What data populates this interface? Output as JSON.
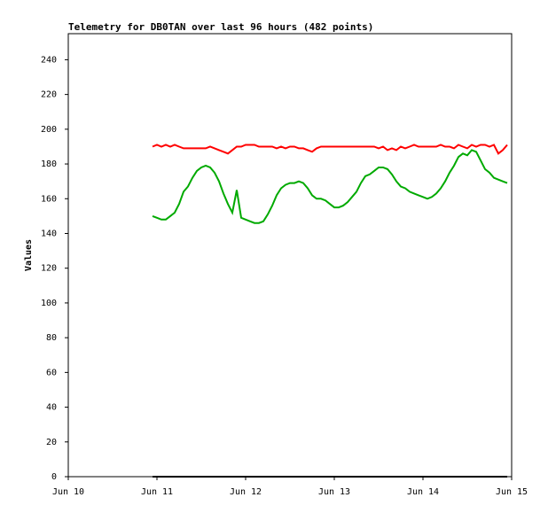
{
  "chart_data": {
    "type": "line",
    "title": "Telemetry for DB0TAN over last 96 hours (482 points)",
    "ylabel": "Values",
    "x": [
      10.95,
      11.0,
      11.05,
      11.1,
      11.15,
      11.2,
      11.25,
      11.3,
      11.35,
      11.4,
      11.45,
      11.5,
      11.55,
      11.6,
      11.65,
      11.7,
      11.75,
      11.8,
      11.85,
      11.9,
      11.95,
      12.0,
      12.05,
      12.1,
      12.15,
      12.2,
      12.25,
      12.3,
      12.35,
      12.4,
      12.45,
      12.5,
      12.55,
      12.6,
      12.65,
      12.7,
      12.75,
      12.8,
      12.85,
      12.9,
      12.95,
      13.0,
      13.05,
      13.1,
      13.15,
      13.2,
      13.25,
      13.3,
      13.35,
      13.4,
      13.45,
      13.5,
      13.55,
      13.6,
      13.65,
      13.7,
      13.75,
      13.8,
      13.85,
      13.9,
      13.95,
      14.0,
      14.05,
      14.1,
      14.15,
      14.2,
      14.25,
      14.3,
      14.35,
      14.4,
      14.45,
      14.5,
      14.55,
      14.6,
      14.65,
      14.7,
      14.75,
      14.8,
      14.85,
      14.9,
      14.95
    ],
    "series": [
      {
        "color": "#ff0000",
        "values": [
          190,
          191,
          190,
          191,
          190,
          191,
          190,
          189,
          189,
          189,
          189,
          189,
          189,
          190,
          189,
          188,
          187,
          186,
          188,
          190,
          190,
          191,
          191,
          191,
          190,
          190,
          190,
          190,
          189,
          190,
          189,
          190,
          190,
          189,
          189,
          188,
          187,
          189,
          190,
          190,
          190,
          190,
          190,
          190,
          190,
          190,
          190,
          190,
          190,
          190,
          190,
          189,
          190,
          188,
          189,
          188,
          190,
          189,
          190,
          191,
          190,
          190,
          190,
          190,
          190,
          191,
          190,
          190,
          189,
          191,
          190,
          189,
          191,
          190,
          191,
          191,
          190,
          191,
          186,
          188,
          191
        ]
      },
      {
        "color": "#00aa00",
        "values": [
          150,
          149,
          148,
          148,
          150,
          152,
          157,
          164,
          167,
          172,
          176,
          178,
          179,
          178,
          175,
          170,
          163,
          157,
          152,
          165,
          149,
          148,
          147,
          146,
          146,
          147,
          151,
          156,
          162,
          166,
          168,
          169,
          169,
          170,
          169,
          166,
          162,
          160,
          160,
          159,
          157,
          155,
          155,
          156,
          158,
          161,
          164,
          169,
          173,
          174,
          176,
          178,
          178,
          177,
          174,
          170,
          167,
          166,
          164,
          163,
          162,
          161,
          160,
          161,
          163,
          166,
          170,
          175,
          179,
          184,
          186,
          185,
          188,
          187,
          182,
          177,
          175,
          172,
          171,
          170,
          169
        ]
      },
      {
        "color": "#000000",
        "values": [
          0,
          0,
          0,
          0,
          0,
          0,
          0,
          0,
          0,
          0,
          0,
          0,
          0,
          0,
          0,
          0,
          0,
          0,
          0,
          0,
          0,
          0,
          0,
          0,
          0,
          0,
          0,
          0,
          0,
          0,
          0,
          0,
          0,
          0,
          0,
          0,
          0,
          0,
          0,
          0,
          0,
          0,
          0,
          0,
          0,
          0,
          0,
          0,
          0,
          0,
          0,
          0,
          0,
          0,
          0,
          0,
          0,
          0,
          0,
          0,
          0,
          0,
          0,
          0,
          0,
          0,
          0,
          0,
          0,
          0,
          0,
          0,
          0,
          0,
          0,
          0,
          0,
          0,
          0,
          0,
          0
        ]
      }
    ],
    "xlim": [
      10,
      15
    ],
    "xticks": [
      {
        "value": 10,
        "label": "Jun 10"
      },
      {
        "value": 11,
        "label": "Jun 11"
      },
      {
        "value": 12,
        "label": "Jun 12"
      },
      {
        "value": 13,
        "label": "Jun 13"
      },
      {
        "value": 14,
        "label": "Jun 14"
      },
      {
        "value": 15,
        "label": "Jun 15"
      }
    ],
    "ylim": [
      0,
      255
    ],
    "yticks": [
      0,
      20,
      40,
      60,
      80,
      100,
      120,
      140,
      160,
      180,
      200,
      220,
      240
    ],
    "grid": false
  }
}
